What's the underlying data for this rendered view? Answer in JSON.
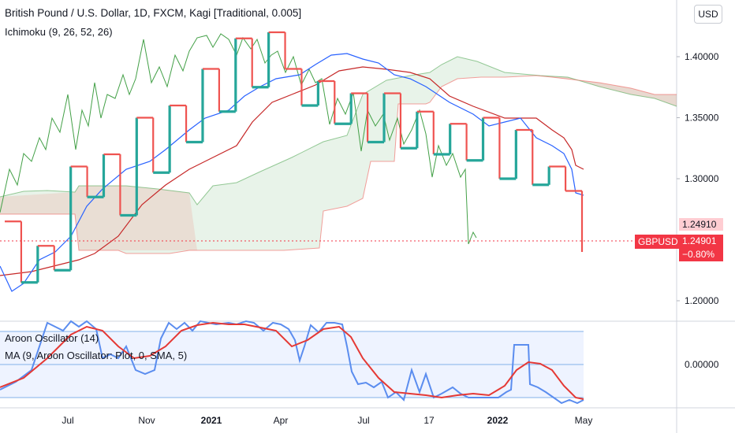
{
  "header": {
    "title": "British Pound / U.S. Dollar, 1D, FXCM, Kagi [Traditional, 0.005]",
    "ichimoku_label": "Ichimoku (9, 26, 52, 26)",
    "currency_button": "USD"
  },
  "price_axis": {
    "ticks": [
      "1.40000",
      "1.35000",
      "1.30000",
      "1.20000"
    ],
    "tick_values": [
      1.4,
      1.35,
      1.3,
      1.2
    ],
    "marker_value": "1.24910",
    "last_price_symbol": "GBPUSD",
    "last_price": "1.24901",
    "change": "−0.80%"
  },
  "time_axis": {
    "labels": [
      "Jul",
      "Nov",
      "2021",
      "Apr",
      "Jul",
      "17",
      "2022",
      "May"
    ],
    "bold": [
      false,
      false,
      true,
      false,
      false,
      false,
      true,
      false
    ]
  },
  "oscillator": {
    "label": "Aroon Oscillator (14)",
    "ma_label": "MA (9, Aroon Oscillator: Plot, 0, SMA, 5)",
    "tick": "0.00000"
  },
  "colors": {
    "up": "#26a69a",
    "down": "#ef5350",
    "conversion": "#2962ff",
    "base": "#c62828",
    "lagging": "#43a047",
    "aroon": "#5b8def",
    "ma": "#e53935",
    "price_tag": "#f23645",
    "marker_tag": "#ffcdd2"
  },
  "chart_data": {
    "type": "line",
    "title": "British Pound / U.S. Dollar, 1D, FXCM, Kagi [Traditional, 0.005]",
    "kagi_levels": [
      1.265,
      1.215,
      1.245,
      1.225,
      1.31,
      1.285,
      1.32,
      1.27,
      1.35,
      1.305,
      1.36,
      1.33,
      1.39,
      1.355,
      1.415,
      1.375,
      1.42,
      1.39,
      1.36,
      1.38,
      1.345,
      1.37,
      1.33,
      1.37,
      1.325,
      1.355,
      1.32,
      1.345,
      1.315,
      1.35,
      1.3,
      1.34,
      1.295,
      1.31,
      1.29,
      1.24
    ],
    "last_price": 1.24901,
    "ylim": [
      1.18,
      1.44
    ],
    "series": [
      {
        "name": "Ichimoku (9, 26, 52, 26)"
      },
      {
        "name": "Aroon Oscillator (14)"
      },
      {
        "name": "MA (9, Aroon Oscillator: Plot, 0, SMA, 5)"
      }
    ]
  }
}
